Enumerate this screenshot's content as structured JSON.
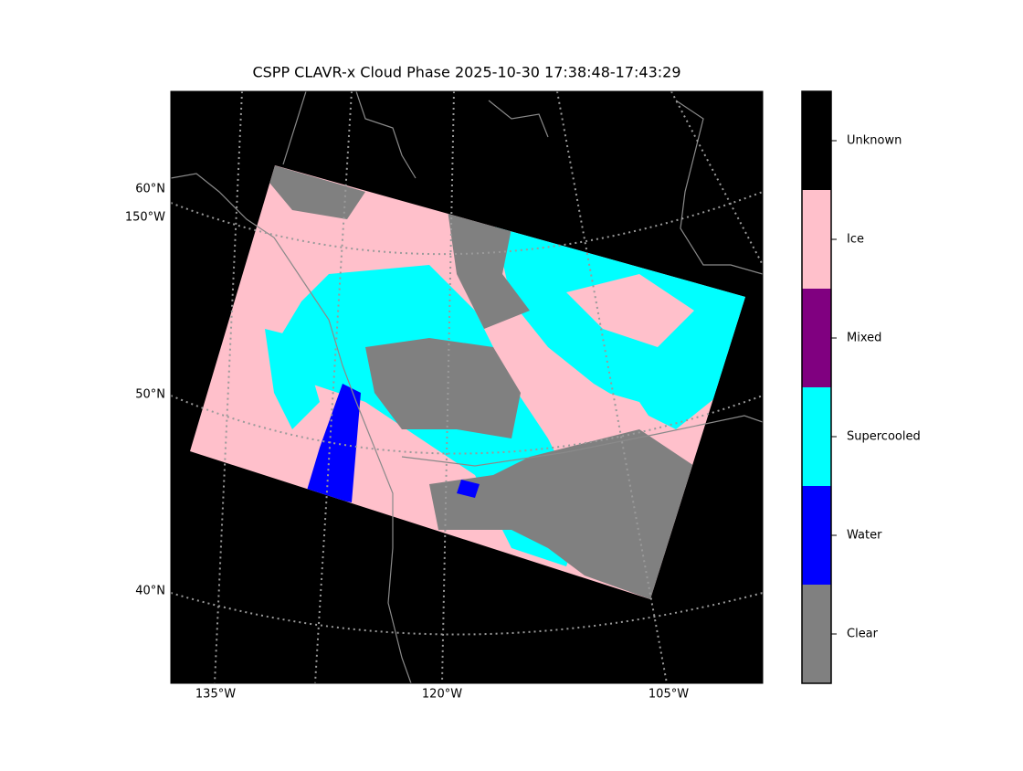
{
  "title": "CSPP CLAVR-x Cloud Phase 2025-10-30 17:38:48-17:43:29",
  "map": {
    "lat_labels": [
      "60°N",
      "50°N",
      "40°N"
    ],
    "lon_label_left": "150°W",
    "lon_labels_bottom": [
      "135°W",
      "120°W",
      "105°W"
    ]
  },
  "colorbar": {
    "classes": [
      {
        "name": "Clear",
        "color": "#808080"
      },
      {
        "name": "Water",
        "color": "#0000ff"
      },
      {
        "name": "Supercooled",
        "color": "#00ffff"
      },
      {
        "name": "Mixed",
        "color": "#800080"
      },
      {
        "name": "Ice",
        "color": "#ffc0cb"
      },
      {
        "name": "Unknown",
        "color": "#000000"
      }
    ]
  }
}
